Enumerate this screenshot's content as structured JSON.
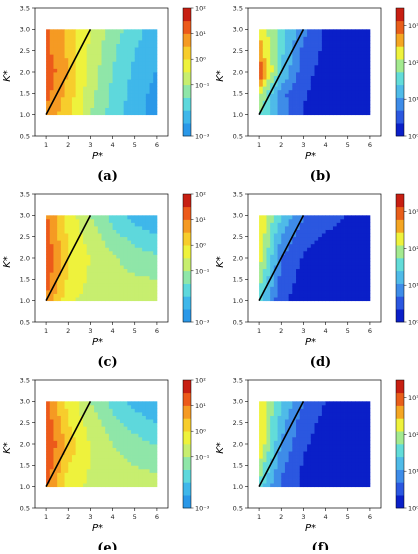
{
  "figure": {
    "panel_labels": [
      "(a)",
      "(b)",
      "(c)",
      "(d)",
      "(e)",
      "(f)"
    ]
  },
  "colors": {
    "line": "#000000",
    "scale_linear": [
      "#2a98e8",
      "#3fb7ea",
      "#5ed8dc",
      "#8fe6a8",
      "#c7ee6f",
      "#eef23c",
      "#f7cd2c",
      "#f59a23",
      "#ec5a1a",
      "#c71f12"
    ],
    "scale_log": [
      "#0a1fc8",
      "#2b57e0",
      "#3e8ce8",
      "#4fbbe8",
      "#62dcd9",
      "#a3ea8f",
      "#eef23c",
      "#f4a623",
      "#e85e1a",
      "#c71f12"
    ]
  },
  "chart_data": [
    {
      "type": "heatmap",
      "panel": "(a)",
      "xlabel": "P*",
      "ylabel": "K*",
      "xlim": [
        0.5,
        6.5
      ],
      "ylim": [
        0.5,
        3.5
      ],
      "xticks": [
        1,
        2,
        3,
        4,
        5,
        6
      ],
      "yticks": [
        0.5,
        1.0,
        1.5,
        2.0,
        2.5,
        3.0,
        3.5
      ],
      "x": [
        1,
        2,
        3,
        4,
        5,
        6
      ],
      "y": [
        1.0,
        1.5,
        2.0,
        2.5,
        3.0
      ],
      "scale": "log",
      "z": [
        [
          8.0,
          1.5,
          0.1,
          0.018,
          0.005,
          0.002
        ],
        [
          15.0,
          2.0,
          0.15,
          0.025,
          0.006,
          0.002
        ],
        [
          25.0,
          3.0,
          0.2,
          0.03,
          0.008,
          0.003
        ],
        [
          15.0,
          2.5,
          0.25,
          0.04,
          0.01,
          0.004
        ],
        [
          12.0,
          2.0,
          0.3,
          0.06,
          0.015,
          0.006
        ]
      ],
      "colorbar": {
        "ticks": [
          0.001,
          0.1,
          1,
          10,
          100
        ],
        "tick_labels": [
          "10⁻³",
          "10⁻¹",
          "10⁰",
          "10¹",
          "10²"
        ],
        "range": [
          0.001,
          100
        ],
        "palette": "scale_linear"
      },
      "line": {
        "x": [
          1,
          3
        ],
        "y": [
          1.0,
          3.0
        ]
      }
    },
    {
      "type": "heatmap",
      "panel": "(b)",
      "xlabel": "P*",
      "ylabel": "K*",
      "xlim": [
        0.5,
        6.5
      ],
      "ylim": [
        0.5,
        3.5
      ],
      "xticks": [
        1,
        2,
        3,
        4,
        5,
        6
      ],
      "yticks": [
        0.5,
        1.0,
        1.5,
        2.0,
        2.5,
        3.0,
        3.5
      ],
      "x": [
        1,
        2,
        3,
        4,
        5,
        6
      ],
      "y": [
        1.0,
        1.5,
        2.0,
        2.5,
        3.0
      ],
      "scale": "log",
      "z": [
        [
          60,
          8,
          2,
          1.2,
          1.1,
          1.05
        ],
        [
          150,
          6,
          2.5,
          1.4,
          1.2,
          1.1
        ],
        [
          1500,
          25,
          3,
          1.6,
          1.3,
          1.2
        ],
        [
          400,
          30,
          4,
          1.8,
          1.4,
          1.2
        ],
        [
          250,
          40,
          6,
          2,
          1.5,
          1.3
        ]
      ],
      "colorbar": {
        "ticks": [
          1,
          10,
          100,
          1000
        ],
        "tick_labels": [
          "10⁰",
          "10¹",
          "10²",
          "10³"
        ],
        "range": [
          1,
          3000
        ],
        "palette": "scale_log"
      },
      "line": {
        "x": [
          1,
          3
        ],
        "y": [
          1.0,
          3.0
        ]
      }
    },
    {
      "type": "heatmap",
      "panel": "(c)",
      "xlabel": "P*",
      "ylabel": "K*",
      "xlim": [
        0.5,
        6.5
      ],
      "ylim": [
        0.5,
        3.5
      ],
      "xticks": [
        1,
        2,
        3,
        4,
        5,
        6
      ],
      "yticks": [
        0.5,
        1.0,
        1.5,
        2.0,
        2.5,
        3.0,
        3.5
      ],
      "x": [
        1,
        2,
        3,
        4,
        5,
        6
      ],
      "y": [
        1.0,
        1.5,
        2.0,
        2.5,
        3.0
      ],
      "scale": "log",
      "z": [
        [
          8.0,
          0.4,
          0.2,
          0.2,
          0.18,
          0.15
        ],
        [
          20.0,
          0.8,
          0.25,
          0.15,
          0.12,
          0.1
        ],
        [
          30.0,
          1.0,
          0.3,
          0.12,
          0.06,
          0.04
        ],
        [
          20.0,
          0.8,
          0.2,
          0.05,
          0.02,
          0.012
        ],
        [
          12.0,
          0.6,
          0.1,
          0.02,
          0.006,
          0.003
        ]
      ],
      "colorbar": {
        "ticks": [
          0.001,
          0.1,
          1,
          10,
          100
        ],
        "tick_labels": [
          "10⁻³",
          "10⁻¹",
          "10⁰",
          "10¹",
          "10²"
        ],
        "range": [
          0.001,
          100
        ],
        "palette": "scale_linear"
      },
      "line": {
        "x": [
          1,
          3
        ],
        "y": [
          1.0,
          3.0
        ]
      }
    },
    {
      "type": "heatmap",
      "panel": "(d)",
      "xlabel": "P*",
      "ylabel": "K*",
      "xlim": [
        0.5,
        6.5
      ],
      "ylim": [
        0.5,
        3.5
      ],
      "xticks": [
        1,
        2,
        3,
        4,
        5,
        6
      ],
      "yticks": [
        0.5,
        1.0,
        1.5,
        2.0,
        2.5,
        3.0,
        3.5
      ],
      "x": [
        1,
        2,
        3,
        4,
        5,
        6
      ],
      "y": [
        1.0,
        1.5,
        2.0,
        2.5,
        3.0
      ],
      "scale": "log",
      "z": [
        [
          30,
          2.5,
          1.6,
          1.3,
          1.2,
          1.1
        ],
        [
          90,
          3.5,
          1.7,
          1.4,
          1.3,
          1.2
        ],
        [
          200,
          5,
          2,
          1.6,
          1.4,
          1.3
        ],
        [
          250,
          10,
          3,
          2,
          1.7,
          1.5
        ],
        [
          300,
          25,
          5,
          3,
          2.2,
          1.8
        ]
      ],
      "colorbar": {
        "ticks": [
          1,
          10,
          100,
          1000
        ],
        "tick_labels": [
          "10⁰",
          "10¹",
          "10²",
          "10³"
        ],
        "range": [
          1,
          3000
        ],
        "palette": "scale_log"
      },
      "line": {
        "x": [
          1,
          3
        ],
        "y": [
          1.0,
          3.0
        ]
      }
    },
    {
      "type": "heatmap",
      "panel": "(e)",
      "xlabel": "P*",
      "ylabel": "K*",
      "xlim": [
        0.5,
        6.5
      ],
      "ylim": [
        0.5,
        3.5
      ],
      "xticks": [
        1,
        2,
        3,
        4,
        5,
        6
      ],
      "yticks": [
        0.5,
        1.0,
        1.5,
        2.0,
        2.5,
        3.0,
        3.5
      ],
      "x": [
        1,
        2,
        3,
        4,
        5,
        6
      ],
      "y": [
        1.0,
        1.5,
        2.0,
        2.5,
        3.0
      ],
      "scale": "log",
      "z": [
        [
          12.0,
          0.5,
          0.25,
          0.2,
          0.18,
          0.15
        ],
        [
          25.0,
          1.0,
          0.3,
          0.15,
          0.1,
          0.08
        ],
        [
          40.0,
          2.0,
          0.3,
          0.1,
          0.05,
          0.03
        ],
        [
          25.0,
          1.0,
          0.2,
          0.05,
          0.02,
          0.01
        ],
        [
          12.0,
          0.7,
          0.1,
          0.02,
          0.006,
          0.003
        ]
      ],
      "colorbar": {
        "ticks": [
          0.001,
          0.1,
          1,
          10,
          100
        ],
        "tick_labels": [
          "10⁻³",
          "10⁻¹",
          "10⁰",
          "10¹",
          "10²"
        ],
        "range": [
          0.001,
          100
        ],
        "palette": "scale_linear"
      },
      "line": {
        "x": [
          1,
          3
        ],
        "y": [
          1.0,
          3.0
        ]
      }
    },
    {
      "type": "heatmap",
      "panel": "(f)",
      "xlabel": "P*",
      "ylabel": "K*",
      "xlim": [
        0.5,
        6.5
      ],
      "ylim": [
        0.5,
        3.5
      ],
      "xticks": [
        1,
        2,
        3,
        4,
        5,
        6
      ],
      "yticks": [
        0.5,
        1.0,
        1.5,
        2.0,
        2.5,
        3.0,
        3.5
      ],
      "x": [
        1,
        2,
        3,
        4,
        5,
        6
      ],
      "y": [
        1.0,
        1.5,
        2.0,
        2.5,
        3.0
      ],
      "scale": "log",
      "z": [
        [
          40,
          4,
          1.8,
          1.3,
          1.2,
          1.1
        ],
        [
          100,
          6,
          2,
          1.4,
          1.25,
          1.15
        ],
        [
          300,
          10,
          2.5,
          1.6,
          1.3,
          1.2
        ],
        [
          250,
          15,
          3,
          1.8,
          1.4,
          1.3
        ],
        [
          300,
          30,
          5,
          2.2,
          1.6,
          1.4
        ]
      ],
      "colorbar": {
        "ticks": [
          1,
          10,
          100,
          1000
        ],
        "tick_labels": [
          "10⁰",
          "10¹",
          "10²",
          "10³"
        ],
        "range": [
          1,
          3000
        ],
        "palette": "scale_log"
      },
      "line": {
        "x": [
          1,
          3
        ],
        "y": [
          1.0,
          3.0
        ]
      }
    }
  ]
}
